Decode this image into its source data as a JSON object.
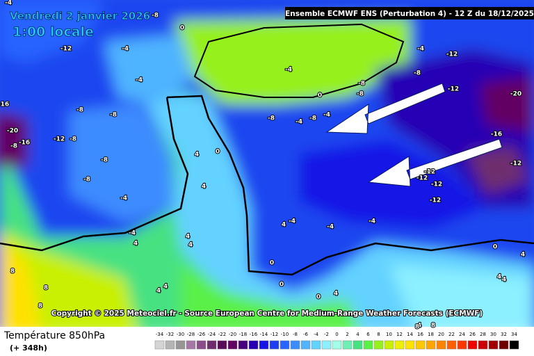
{
  "header": {
    "date": "Vendredi 2 janvier 2026",
    "local_time": "1:00 locale",
    "run": "Ensemble ECMWF ENS  (Perturbation 4)  -  12 Z du 18/12/2025"
  },
  "map": {
    "copyright": "Copyright © 2025 Meteociel.fr - Source European Centre for Medium-Range Weather Forecasts (ECMWF)",
    "contour_labels": [
      "-4",
      "-8",
      "-4",
      "0",
      "-4",
      "-12",
      "-16",
      "-20",
      "-16",
      "-8",
      "-12",
      "-8",
      "-8",
      "-8",
      "-4",
      "-8",
      "-8",
      "-4",
      "-4",
      "0",
      "-4",
      "-8",
      "-8",
      "-8",
      "-8",
      "-4",
      "-8",
      "-12",
      "-12",
      "-20",
      "-16",
      "-12",
      "-12",
      "-12",
      "-12",
      "-12",
      "-4",
      "-4",
      "4",
      "0",
      "4",
      "4",
      "4",
      "4",
      "4",
      "4",
      "-4",
      "4",
      "-4",
      "0",
      "0",
      "0",
      "4",
      "8",
      "8",
      "8",
      "4",
      "4",
      "0",
      "4",
      "4",
      "8",
      "8"
    ]
  },
  "footer": {
    "title": "Température 850hPa",
    "lead": "(+ 348h)"
  },
  "scale": {
    "ticks": [
      -34,
      -32,
      -30,
      -28,
      -26,
      -24,
      -22,
      -20,
      -18,
      -16,
      -14,
      -12,
      -10,
      -8,
      -6,
      -4,
      -2,
      0,
      2,
      4,
      6,
      8,
      10,
      12,
      14,
      16,
      18,
      20,
      22,
      24,
      26,
      28,
      30,
      32,
      34
    ],
    "colors": [
      "#d4d4d4",
      "#b4b4b4",
      "#969696",
      "#a678a6",
      "#8c4c8c",
      "#6e2e6e",
      "#5a0a5a",
      "#640064",
      "#46007c",
      "#2800b4",
      "#1414e6",
      "#1e3cf0",
      "#2864ff",
      "#3c8cff",
      "#50b4ff",
      "#64d2ff",
      "#8cf0ff",
      "#a0ffe6",
      "#6ef0b4",
      "#46e182",
      "#5af046",
      "#96f01e",
      "#c8f000",
      "#eef000",
      "#ffe100",
      "#ffc800",
      "#ffa500",
      "#ff8200",
      "#ff5f00",
      "#ff3700",
      "#f00000",
      "#cd0000",
      "#a00000",
      "#6e0000",
      "#000000"
    ]
  }
}
